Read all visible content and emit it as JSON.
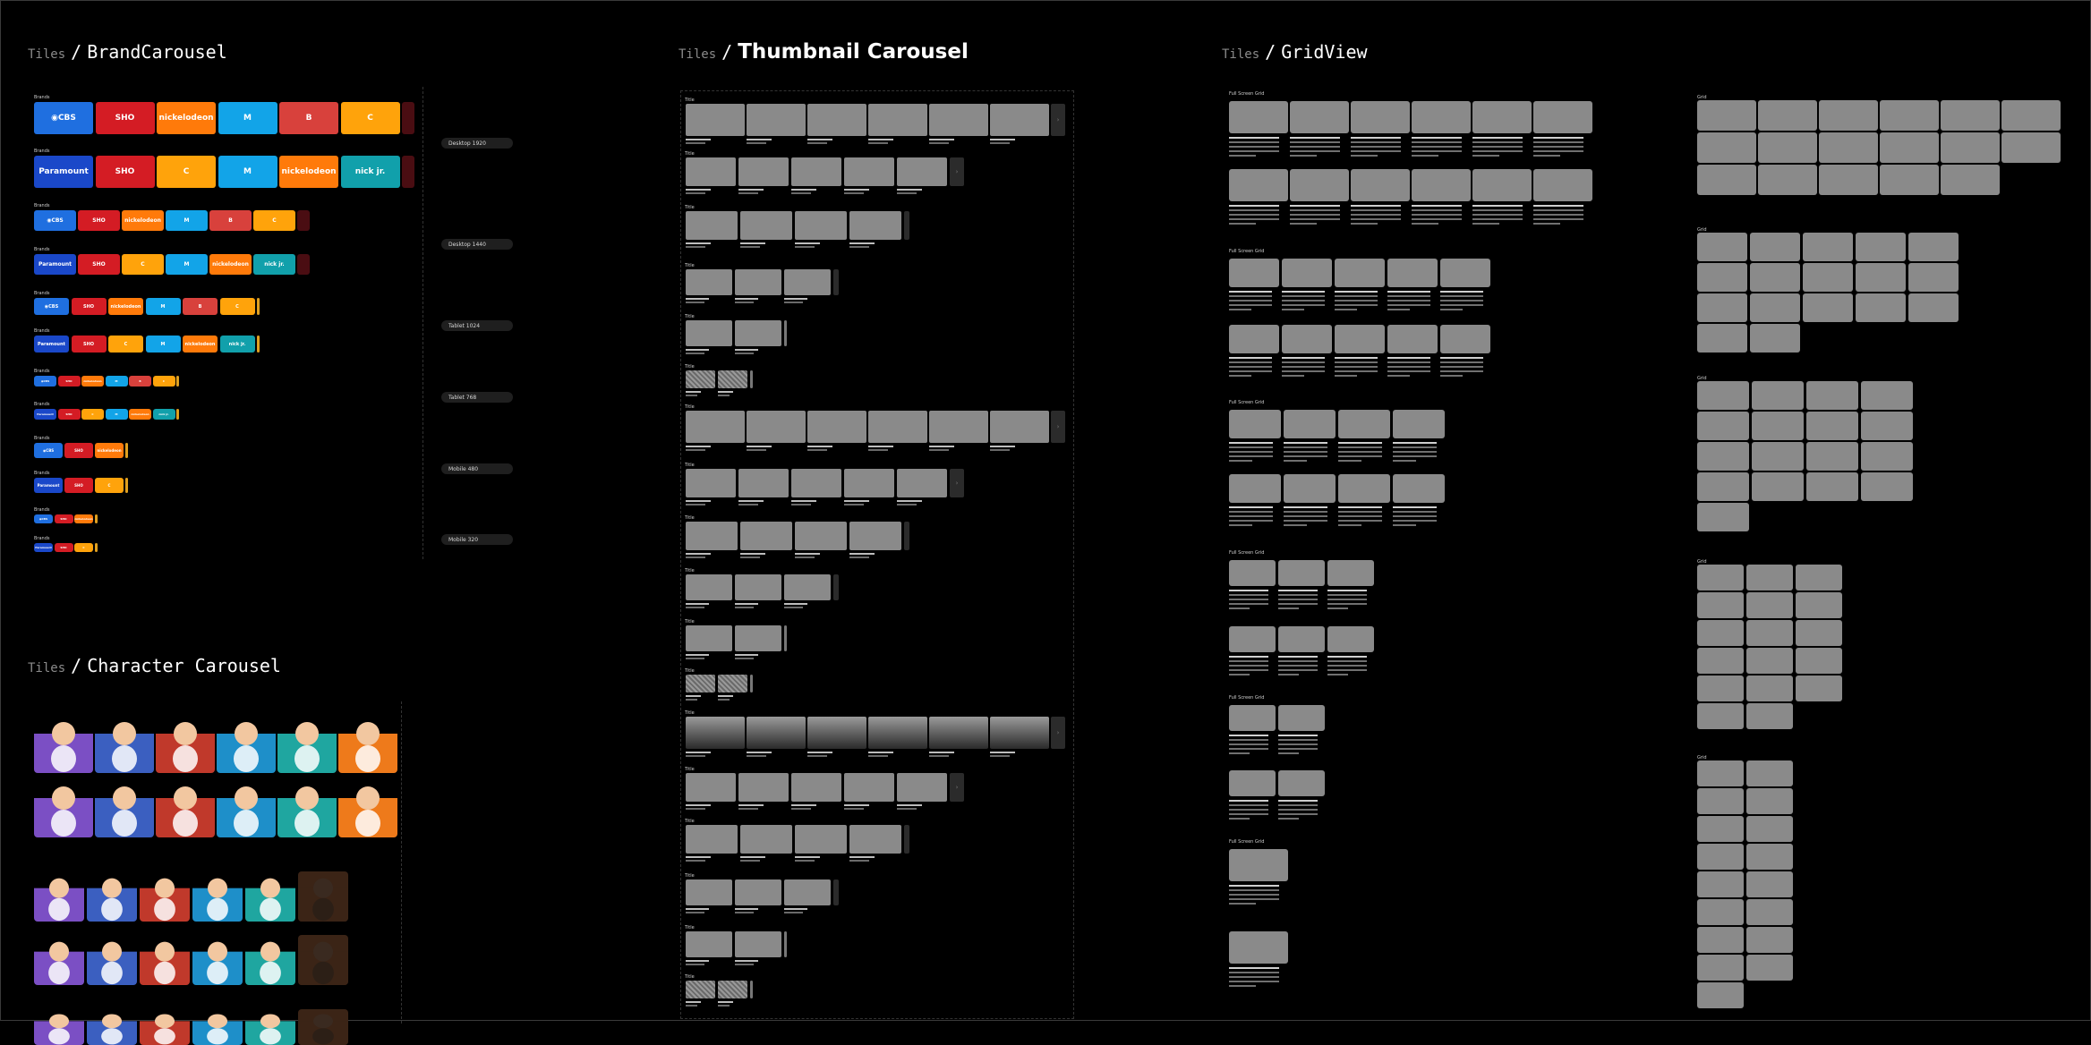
{
  "titles": {
    "brand": {
      "crumb": "Tiles",
      "sep": "/",
      "name": "BrandCarousel"
    },
    "thumb": {
      "crumb": "Tiles",
      "sep": "/",
      "name": "Thumbnail Carousel"
    },
    "grid": {
      "crumb": "Tiles",
      "sep": "/",
      "name": "GridView"
    },
    "char": {
      "crumb": "Tiles",
      "sep": "/",
      "name": "Character Carousel"
    }
  },
  "brand_carousel": {
    "row_label": "Brands",
    "breakpoints": [
      "Desktop 1920",
      "Desktop 1440",
      "Tablet 1024",
      "Tablet 768",
      "Mobile 480",
      "Mobile 320"
    ],
    "brands": [
      {
        "key": "cbs",
        "label": "◉CBS",
        "color": "#1f6fe0"
      },
      {
        "key": "showtime",
        "label": "SHO",
        "color": "#d41c24"
      },
      {
        "key": "nickelodeon",
        "label": "nickelodeon",
        "color": "#ff7a0a"
      },
      {
        "key": "mtv",
        "label": "M",
        "color": "#12a4e8"
      },
      {
        "key": "bet",
        "label": "B",
        "color": "#d8413c"
      },
      {
        "key": "comedy",
        "label": "C",
        "color": "#ffa30b"
      },
      {
        "key": "paramount",
        "label": "Paramount",
        "color": "#1a48c9"
      },
      {
        "key": "nickjr",
        "label": "nick jr.",
        "color": "#11a0ab"
      }
    ]
  },
  "thumbnail_carousel": {
    "row_label": "Title",
    "arrow_glyph": "›"
  },
  "gridview": {
    "header_label": "Full Screen",
    "header_sub": "Grid",
    "row_label": "Grid"
  },
  "character_carousel": {
    "characters": [
      {
        "key": "dora",
        "color": "#7b4fc4"
      },
      {
        "key": "chase",
        "color": "#3b5fc0"
      },
      {
        "key": "blaze",
        "color": "#c0392b"
      },
      {
        "key": "blue",
        "color": "#1e8fc9"
      },
      {
        "key": "baby",
        "color": "#1fa6a0"
      },
      {
        "key": "lincoln",
        "color": "#ee7a1b"
      }
    ]
  }
}
